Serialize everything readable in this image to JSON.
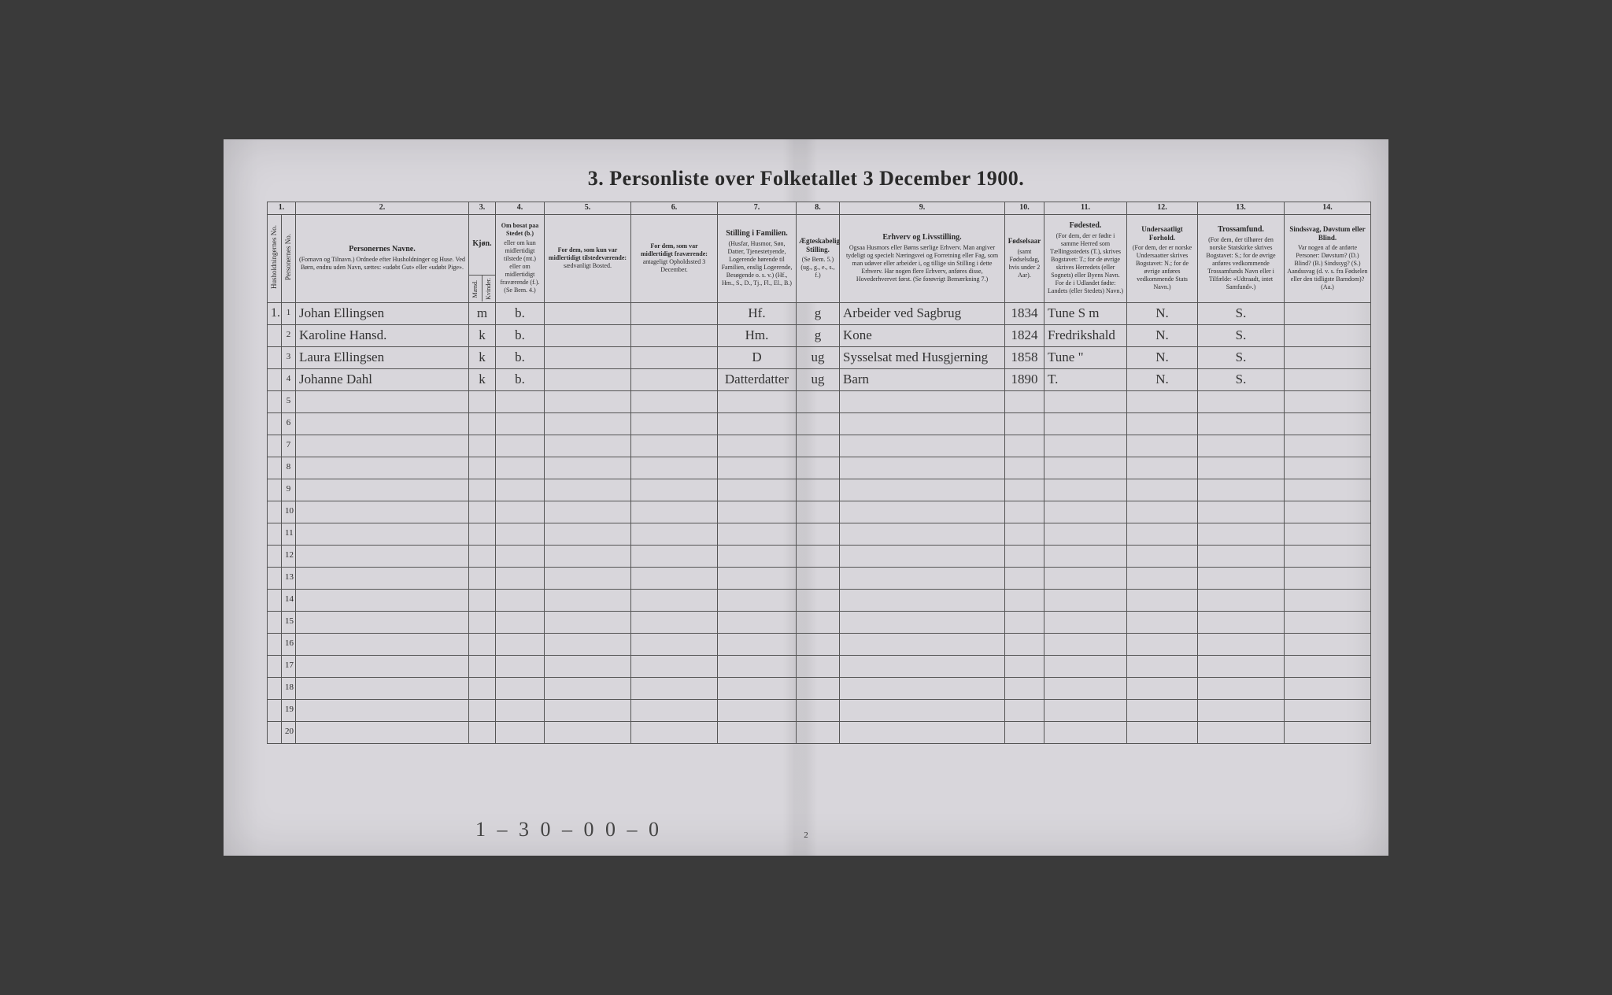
{
  "title": "3.  Personliste over Folketallet 3 December 1900.",
  "page_number": "2",
  "footer_annotation": "1 – 3   0 – 0    0 – 0",
  "columns": {
    "c1": {
      "num": "1."
    },
    "c2": {
      "num": "2.",
      "title": "Personernes Navne.",
      "sub": "(Fornavn og Tilnavn.)\nOrdnede efter Husholdninger og Huse.\nVed Børn, endnu uden Navn, sættes: «udøbt Gut» eller «udøbt Pige»."
    },
    "c3": {
      "num": "3.",
      "title": "Kjøn.",
      "m": "Mænd.",
      "k": "Kvinder.",
      "sub": "m.   k."
    },
    "c4": {
      "num": "4.",
      "title": "Om bosat paa Stedet (b.)",
      "sub": "eller om kun midlertidigt tilstede (mt.) eller om midlertidigt fraværende (f.). (Se Bem. 4.)"
    },
    "c5": {
      "num": "5.",
      "title": "For dem, som kun var midlertidigt tilstedeværende:",
      "sub": "sædvanligt Bosted."
    },
    "c6": {
      "num": "6.",
      "title": "For dem, som var midlertidigt fraværende:",
      "sub": "antageligt Opholdssted 3 December."
    },
    "c7": {
      "num": "7.",
      "title": "Stilling i Familien.",
      "sub": "(Husfar, Husmor, Søn, Datter, Tjenestetyende, Logerende hørende til Familien, enslig Logerende, Besøgende o. s. v.)\n(Hf., Hm., S., D., Tj., Fl., El., B.)"
    },
    "c8": {
      "num": "8.",
      "title": "Ægteskabelig Stilling.",
      "sub": "(Se Bem. 5.)\n(ug., g., e., s., f.)"
    },
    "c9": {
      "num": "9.",
      "title": "Erhverv og Livsstilling.",
      "sub": "Ogsaa Husmors eller Børns særlige Erhverv. Man angiver tydeligt og specielt Næringsvei og Forretning eller Fag, som man udøver eller arbeider i, og tillige sin Stilling i dette Erhverv. Har nogen flere Erhverv, anføres disse, Hovederhvervet først.\n(Se forøvrigt Bemærkning 7.)"
    },
    "c10": {
      "num": "10.",
      "title": "Fødselsaar",
      "sub": "(samt Fødselsdag, hvis under 2 Aar)."
    },
    "c11": {
      "num": "11.",
      "title": "Fødested.",
      "sub": "(For dem, der er fødte i samme Herred som Tællingsstedets (T.), skrives Bogstavet: T.; for de øvrige skrives Herredets (eller Sognets) eller Byens Navn. For de i Udlandet fødte: Landets (eller Stedets) Navn.)"
    },
    "c12": {
      "num": "12.",
      "title": "Undersaatligt Forhold.",
      "sub": "(For dem, der er norske Undersaatter skrives Bogstavet: N.; for de øvrige anføres vedkommende Stats Navn.)"
    },
    "c13": {
      "num": "13.",
      "title": "Trossamfund.",
      "sub": "(For dem, der tilhører den norske Statskirke skrives Bogstavet: S.; for de øvrige anføres vedkommende Trossamfunds Navn eller i Tilfælde: «Udtraadt, intet Samfund».)"
    },
    "c14": {
      "num": "14.",
      "title": "Sindssvag, Døvstum eller Blind.",
      "sub": "Var nogen af de anførte Personer:\nDøvstum? (D.)\nBlind? (B.)\nSindssyg? (S.)\nAandssvag (d. v. s. fra Fødselen eller den tidligste Barndom)? (Aa.)"
    },
    "rowlabel_hh": "Husholdningernes No.",
    "rowlabel_p": "Personernes No."
  },
  "rows": [
    {
      "hh": "1.",
      "no": "1",
      "name": "Johan Ellingsen",
      "sex": "m",
      "res": "b.",
      "fam": "Hf.",
      "mar": "g",
      "occ": "Arbeider ved Sagbrug",
      "year": "1834",
      "birthplace": "Tune S m",
      "nat": "N.",
      "rel": "S."
    },
    {
      "hh": "",
      "no": "2",
      "name": "Karoline Hansd.",
      "sex": "k",
      "res": "b.",
      "fam": "Hm.",
      "mar": "g",
      "occ": "Kone",
      "year": "1824",
      "birthplace": "Fredrikshald",
      "nat": "N.",
      "rel": "S."
    },
    {
      "hh": "",
      "no": "3",
      "name": "Laura Ellingsen",
      "sex": "k",
      "res": "b.",
      "fam": "D",
      "mar": "ug",
      "occ": "Sysselsat med Husgjerning",
      "year": "1858",
      "birthplace": "Tune \"",
      "nat": "N.",
      "rel": "S."
    },
    {
      "hh": "",
      "no": "4",
      "name": "Johanne Dahl",
      "sex": "k",
      "res": "b.",
      "fam": "Datterdatter",
      "mar": "ug",
      "occ": "Barn",
      "year": "1890",
      "birthplace": "T.",
      "nat": "N.",
      "rel": "S."
    }
  ],
  "empty_rows": [
    "5",
    "6",
    "7",
    "8",
    "9",
    "10",
    "11",
    "12",
    "13",
    "14",
    "15",
    "16",
    "17",
    "18",
    "19",
    "20"
  ],
  "col_widths": {
    "hh": 18,
    "pno": 18,
    "name": 220,
    "sex": 34,
    "res": 62,
    "c5": 110,
    "c6": 110,
    "c7": 100,
    "c8": 55,
    "c9": 210,
    "c10": 50,
    "c11": 105,
    "c12": 90,
    "c13": 110,
    "c14": 110
  },
  "colors": {
    "paper": "#d8d6db",
    "ink": "#2a2a2a",
    "rule": "#555555",
    "hand": "#333333",
    "bg": "#3a3a3a"
  }
}
